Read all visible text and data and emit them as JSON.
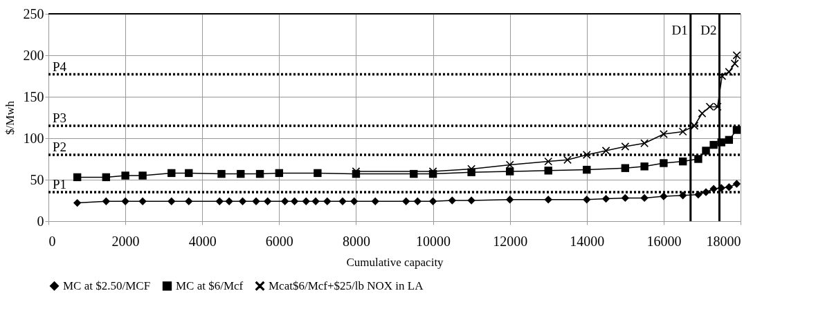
{
  "chart_data": {
    "type": "line",
    "xlabel": "Cumulative capacity",
    "ylabel": "$/Mwh",
    "xlim": [
      0,
      18000
    ],
    "xticks": [
      0,
      2000,
      4000,
      6000,
      8000,
      10000,
      12000,
      14000,
      16000,
      18000
    ],
    "ylim": [
      0,
      250
    ],
    "yticks": [
      0,
      50,
      100,
      150,
      200,
      250
    ],
    "grid": true,
    "legend": "bottom",
    "line_style": "solid",
    "series": [
      {
        "name": "MC at $2.50/MCF",
        "color": "#000000",
        "marker": "diamond",
        "x": [
          750,
          1500,
          2000,
          2450,
          3200,
          3650,
          4450,
          4700,
          5050,
          5400,
          5700,
          6150,
          6400,
          6700,
          6950,
          7250,
          7650,
          7950,
          8500,
          9300,
          9600,
          10000,
          10500,
          11000,
          12000,
          13000,
          14000,
          14500,
          15000,
          15500,
          16000,
          16500,
          16900,
          17100,
          17300,
          17500,
          17700,
          17900
        ],
        "values": [
          22,
          24,
          24,
          24,
          24,
          24,
          24,
          24,
          24,
          24,
          24,
          24,
          24,
          24,
          24,
          24,
          24,
          24,
          24,
          24,
          24,
          24,
          25,
          25,
          26,
          26,
          26,
          27,
          28,
          28,
          30,
          31,
          32,
          35,
          39,
          40,
          41,
          45
        ]
      },
      {
        "name": "MC at $6/Mcf",
        "color": "#000000",
        "marker": "square",
        "x": [
          750,
          1500,
          2000,
          2450,
          3200,
          3650,
          4500,
          5000,
          5500,
          6000,
          7000,
          8000,
          9500,
          10000,
          11000,
          12000,
          13000,
          14000,
          15000,
          15500,
          16000,
          16500,
          16900,
          17100,
          17300,
          17500,
          17700,
          17900
        ],
        "values": [
          53,
          53,
          55,
          55,
          58,
          58,
          57,
          57,
          57,
          58,
          58,
          57,
          57,
          57,
          59,
          60,
          61,
          62,
          64,
          66,
          70,
          72,
          75,
          85,
          92,
          95,
          98,
          110
        ]
      },
      {
        "name": "Mcat$6/Mcf+$25/lb NOX in LA",
        "color": "#000000",
        "marker": "cross",
        "x": [
          8000,
          10000,
          11000,
          12000,
          13000,
          13500,
          14000,
          14500,
          15000,
          15500,
          16000,
          16500,
          16800,
          17000,
          17200,
          17400,
          17520,
          17700,
          17850,
          17900
        ],
        "values": [
          60,
          60,
          63,
          68,
          72,
          74,
          80,
          85,
          90,
          94,
          105,
          108,
          115,
          130,
          138,
          138,
          175,
          180,
          190,
          200
        ]
      }
    ],
    "ref_lines": [
      {
        "axis": "y",
        "value": 35,
        "label": "P1",
        "line_style": "dotted"
      },
      {
        "axis": "y",
        "value": 80,
        "label": "P2",
        "line_style": "dotted"
      },
      {
        "axis": "y",
        "value": 115,
        "label": "P3",
        "line_style": "dotted"
      },
      {
        "axis": "y",
        "value": 177,
        "label": "P4",
        "line_style": "dotted"
      },
      {
        "axis": "x",
        "value": 16700,
        "label": "D1",
        "line_style": "solid"
      },
      {
        "axis": "x",
        "value": 17450,
        "label": "D2",
        "line_style": "solid"
      }
    ]
  }
}
